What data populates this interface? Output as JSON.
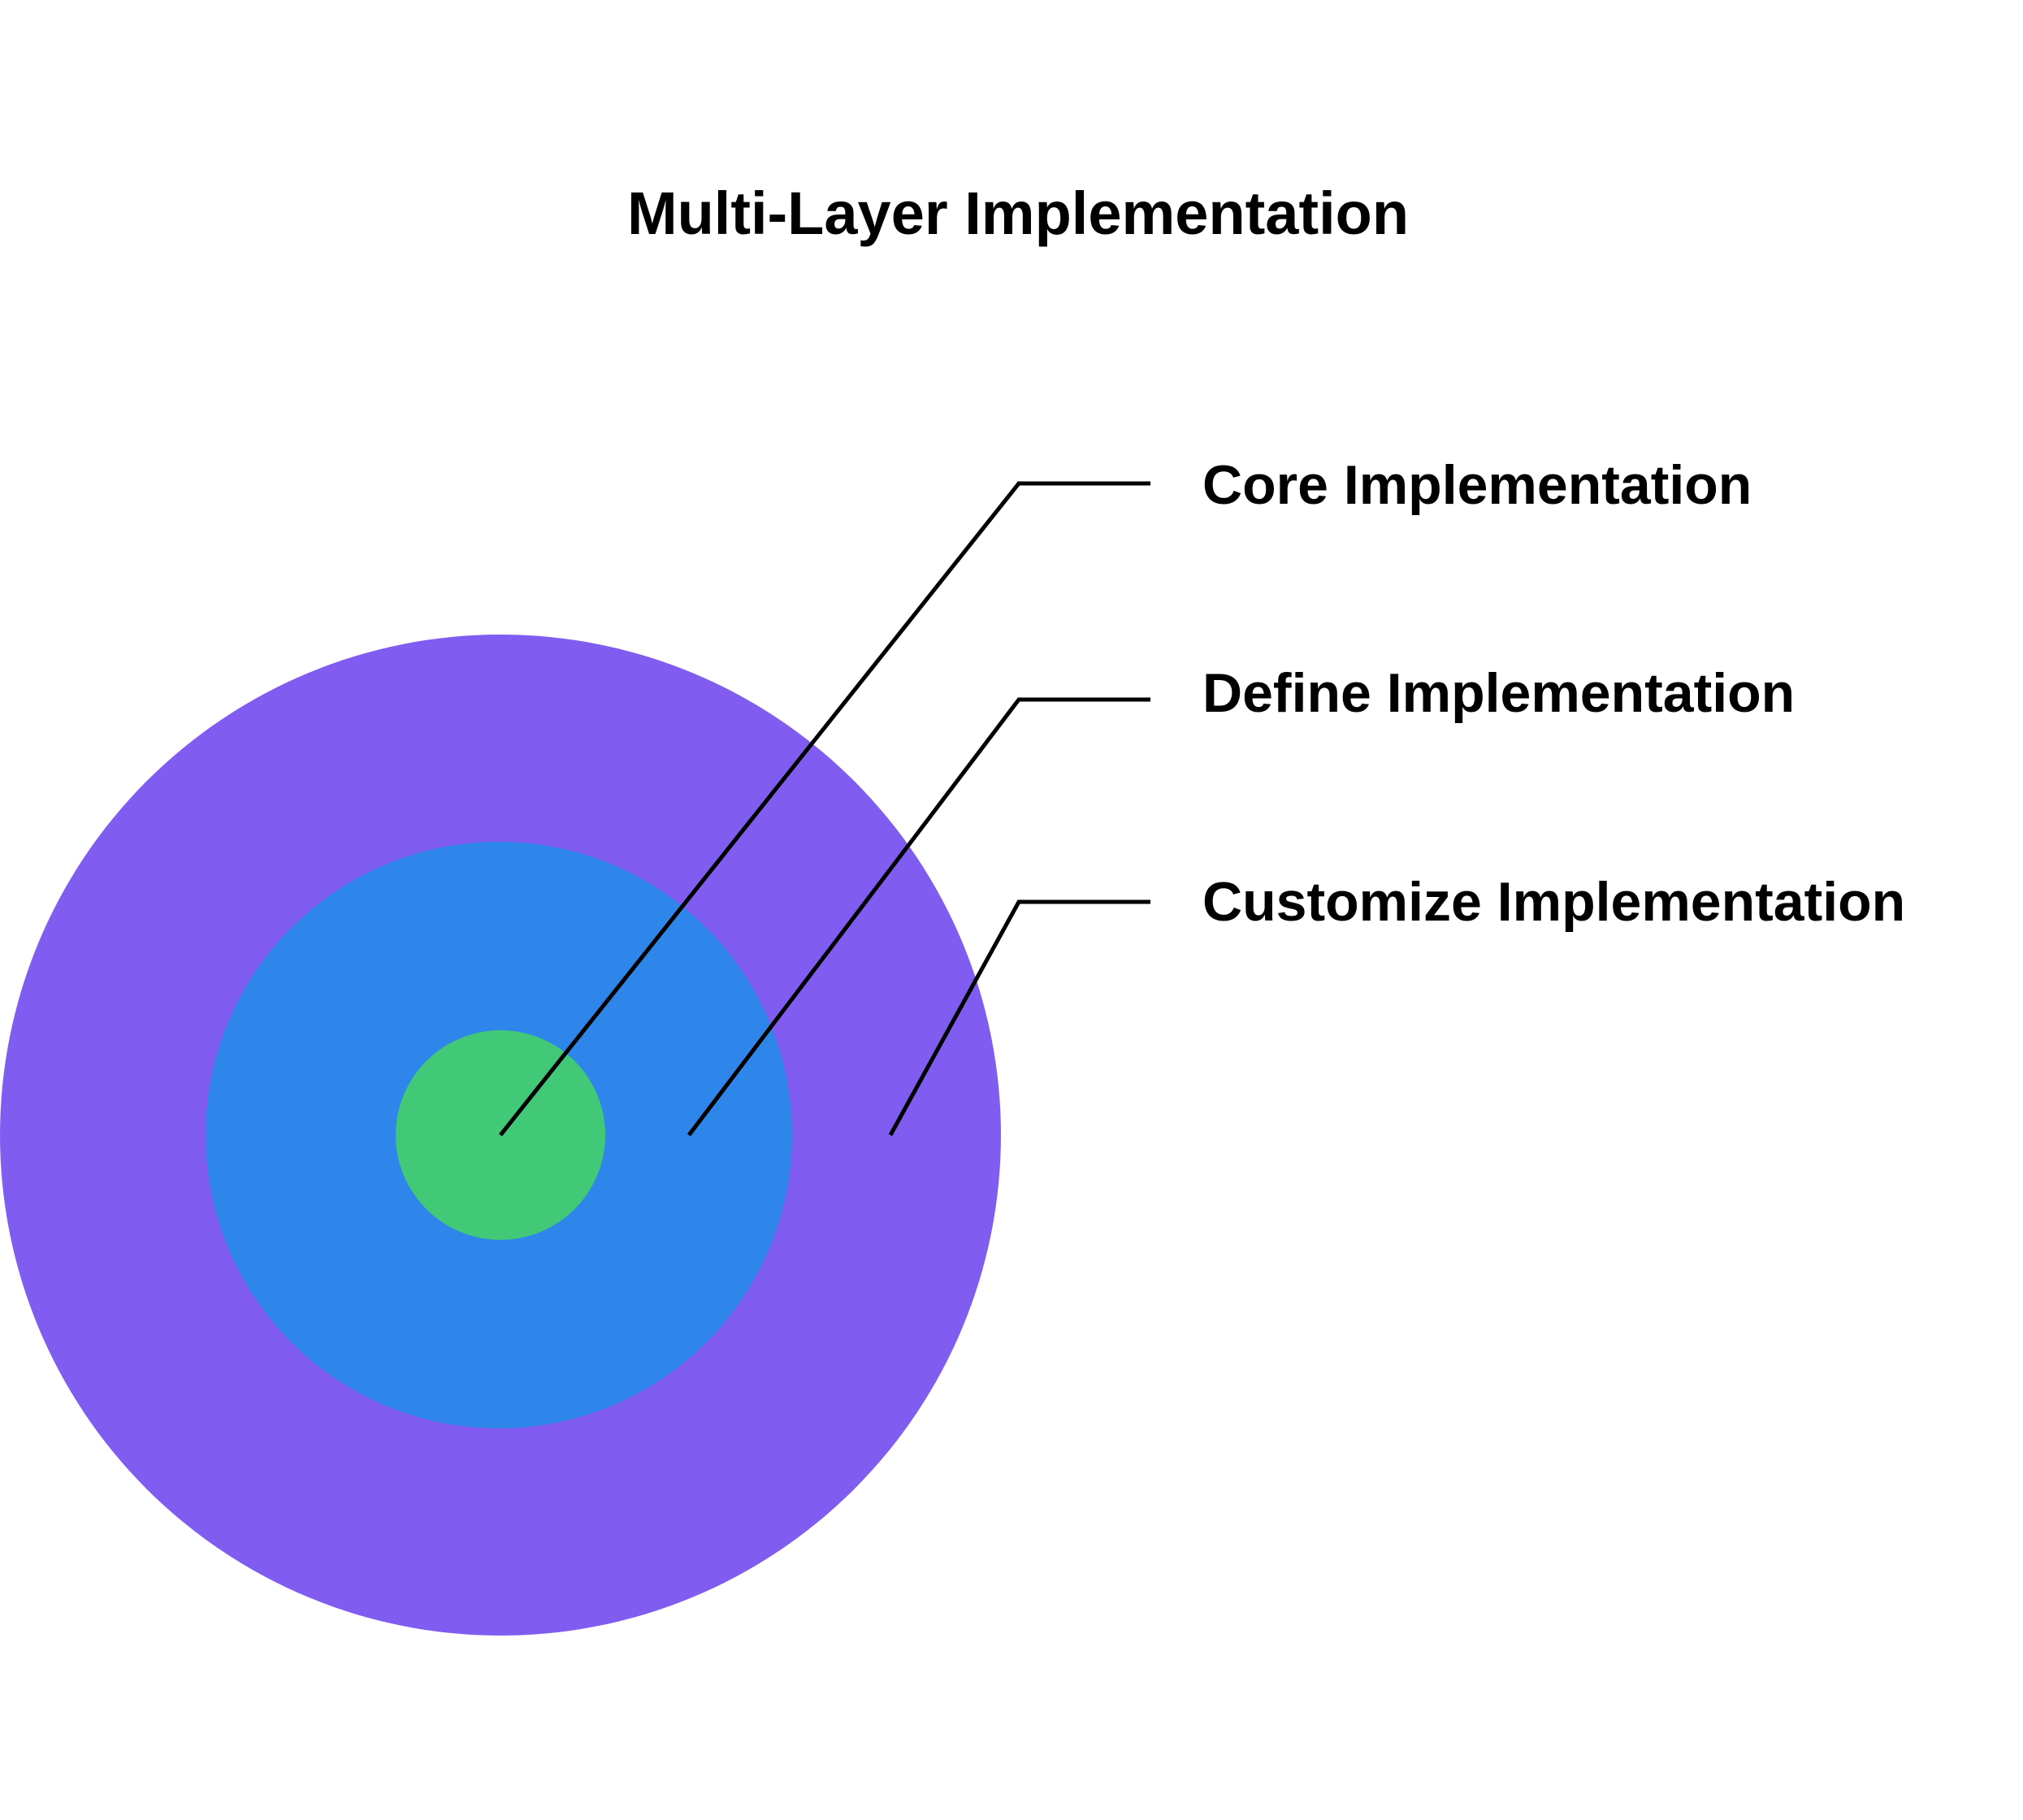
{
  "title": "Multi-Layer Implementation",
  "layers": [
    {
      "label": "Core Implementation",
      "color": "#41C978"
    },
    {
      "label": "Define Implementation",
      "color": "#2E86EA"
    },
    {
      "label": "Customize Implementation",
      "color": "#815CF0"
    }
  ],
  "line_color": "#000000"
}
